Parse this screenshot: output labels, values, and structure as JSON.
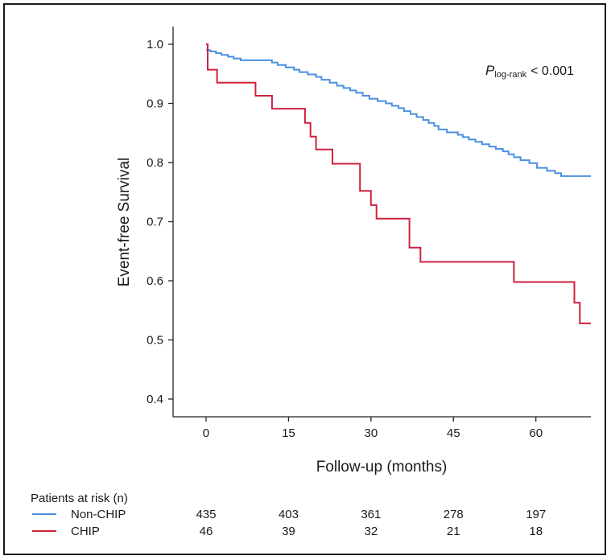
{
  "chart_data": {
    "type": "line",
    "xlabel": "Follow-up (months)",
    "ylabel": "Event-free Survival",
    "xlim": [
      -6,
      70
    ],
    "ylim": [
      0.37,
      1.03
    ],
    "xticks": [
      0,
      15,
      30,
      45,
      60
    ],
    "yticks": [
      0.4,
      0.5,
      0.6,
      0.7,
      0.8,
      0.9,
      1.0
    ],
    "ytick_labels": [
      "0.4",
      "0.5",
      "0.6",
      "0.7",
      "0.8",
      "0.9",
      "1.0"
    ],
    "grid": false,
    "annotation": {
      "p_symbol": "P",
      "p_subscript": "log-rank",
      "p_value_text": "< 0.001"
    },
    "series": [
      {
        "name": "Non-CHIP",
        "color": "#4a8fe0",
        "step": true,
        "x": [
          0,
          0.8,
          1.8,
          2.8,
          4,
          5,
          6.3,
          12,
          13,
          14.5,
          16,
          17,
          18.5,
          20,
          21,
          22.5,
          23.8,
          25,
          26.2,
          27.3,
          28.5,
          29.7,
          31.2,
          32.7,
          33.8,
          35,
          36,
          37.2,
          38.3,
          39.5,
          40.5,
          41.5,
          42.3,
          43.8,
          45.8,
          46.7,
          47.8,
          49,
          50.2,
          51.5,
          52.7,
          54,
          55,
          56,
          57.2,
          58.8,
          60.2,
          62,
          63.5,
          64.6,
          70
        ],
        "y": [
          0.99,
          0.988,
          0.985,
          0.982,
          0.979,
          0.976,
          0.973,
          0.969,
          0.965,
          0.961,
          0.957,
          0.953,
          0.949,
          0.945,
          0.94,
          0.935,
          0.93,
          0.926,
          0.922,
          0.918,
          0.913,
          0.908,
          0.904,
          0.9,
          0.896,
          0.892,
          0.887,
          0.882,
          0.877,
          0.872,
          0.867,
          0.862,
          0.856,
          0.851,
          0.847,
          0.843,
          0.839,
          0.835,
          0.831,
          0.827,
          0.823,
          0.819,
          0.814,
          0.809,
          0.804,
          0.799,
          0.791,
          0.786,
          0.782,
          0.777,
          0.777
        ]
      },
      {
        "name": "CHIP",
        "color": "#d0213d",
        "step": true,
        "x": [
          0,
          0.3,
          2,
          9,
          12,
          18,
          19,
          20,
          23,
          28,
          30,
          31,
          37,
          39,
          56,
          67,
          68,
          70
        ],
        "y": [
          1.0,
          0.957,
          0.935,
          0.913,
          0.891,
          0.867,
          0.844,
          0.822,
          0.798,
          0.752,
          0.728,
          0.705,
          0.656,
          0.632,
          0.598,
          0.563,
          0.528,
          0.528
        ]
      }
    ]
  },
  "risk_table": {
    "title": "Patients at risk (n)",
    "rows": [
      {
        "label": "Non-CHIP",
        "color": "#4a8fe0",
        "counts": [
          "435",
          "403",
          "361",
          "278",
          "197"
        ]
      },
      {
        "label": "CHIP",
        "color": "#d0213d",
        "counts": [
          "46",
          "39",
          "32",
          "21",
          "18"
        ]
      }
    ]
  }
}
